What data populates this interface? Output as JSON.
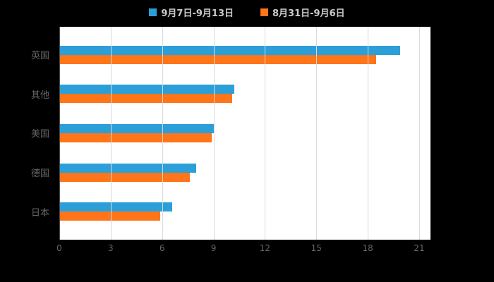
{
  "chart_data": {
    "type": "bar",
    "orientation": "horizontal",
    "title": "",
    "xlabel": "",
    "ylabel": "",
    "categories": [
      "英国",
      "其他",
      "美国",
      "德国",
      "日本"
    ],
    "series": [
      {
        "name": "9月7日-9月13日",
        "color": "#2C9FD9",
        "values": [
          19.9,
          10.2,
          9.0,
          8.0,
          6.6
        ]
      },
      {
        "name": "8月31日-9月6日",
        "color": "#FF7519",
        "values": [
          18.5,
          10.1,
          8.9,
          7.6,
          5.9
        ]
      }
    ],
    "xlim": [
      0,
      21
    ],
    "xticks": [
      0,
      3,
      6,
      9,
      12,
      15,
      18,
      21
    ],
    "grid": true,
    "legend_position": "top",
    "plot_background": "#ffffff",
    "page_background": "#000000",
    "gridline_color": "#d9d9d9",
    "axis_label_color": "#666666",
    "legend_text_color": "#cccccc"
  }
}
